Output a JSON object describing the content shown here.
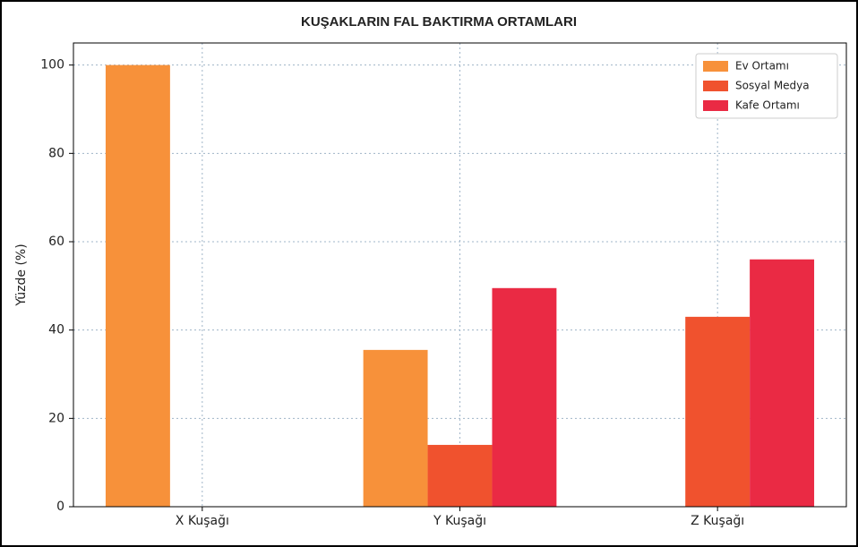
{
  "chart_data": {
    "type": "bar",
    "title": "KUŞAKLARIN FAL BAKTIRMA ORTAMLARI",
    "y_label": "Yüzde (%)",
    "categories": [
      "X Kuşağı",
      "Y Kuşağı",
      "Z Kuşağı"
    ],
    "series": [
      {
        "name": "Ev Ortamı",
        "color": "#f7913a",
        "values": [
          100,
          35.5,
          0
        ]
      },
      {
        "name": "Sosyal Medya",
        "color": "#f0522e",
        "values": [
          0,
          14,
          43
        ]
      },
      {
        "name": "Kafe Ortamı",
        "color": "#ea2a44",
        "values": [
          0,
          49.5,
          56
        ]
      }
    ],
    "ylim": [
      0,
      105
    ],
    "yticks": [
      0,
      20,
      40,
      60,
      80,
      100
    ],
    "grid": true,
    "legend": "upper right"
  }
}
